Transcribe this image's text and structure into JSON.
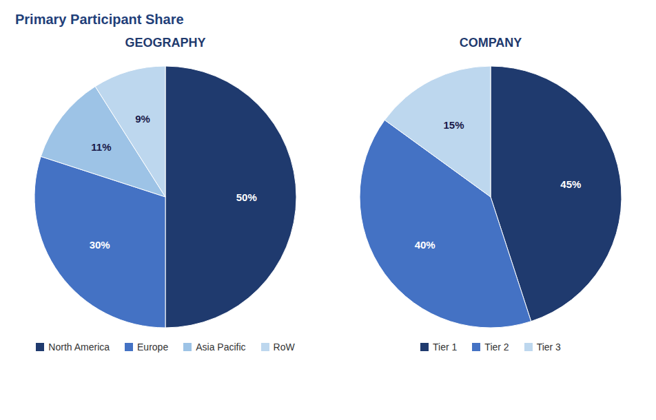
{
  "title": "Primary Participant Share",
  "chart_data": [
    {
      "type": "pie",
      "title": "GEOGRAPHY",
      "categories": [
        "North America",
        "Europe",
        "Asia Pacific",
        "RoW"
      ],
      "values": [
        50,
        30,
        11,
        9
      ],
      "value_labels": [
        "50%",
        "30%",
        "11%",
        "9%"
      ],
      "colors": [
        "#1F3A6E",
        "#4472C4",
        "#9DC3E6",
        "#BDD7EE"
      ],
      "data_labels": true,
      "legend": "bottom"
    },
    {
      "type": "pie",
      "title": "COMPANY",
      "categories": [
        "Tier 1",
        "Tier 2",
        "Tier 3"
      ],
      "values": [
        45,
        40,
        15
      ],
      "value_labels": [
        "45%",
        "40%",
        "15%"
      ],
      "colors": [
        "#1F3A6E",
        "#4472C4",
        "#BDD7EE"
      ],
      "data_labels": true,
      "legend": "bottom"
    }
  ]
}
